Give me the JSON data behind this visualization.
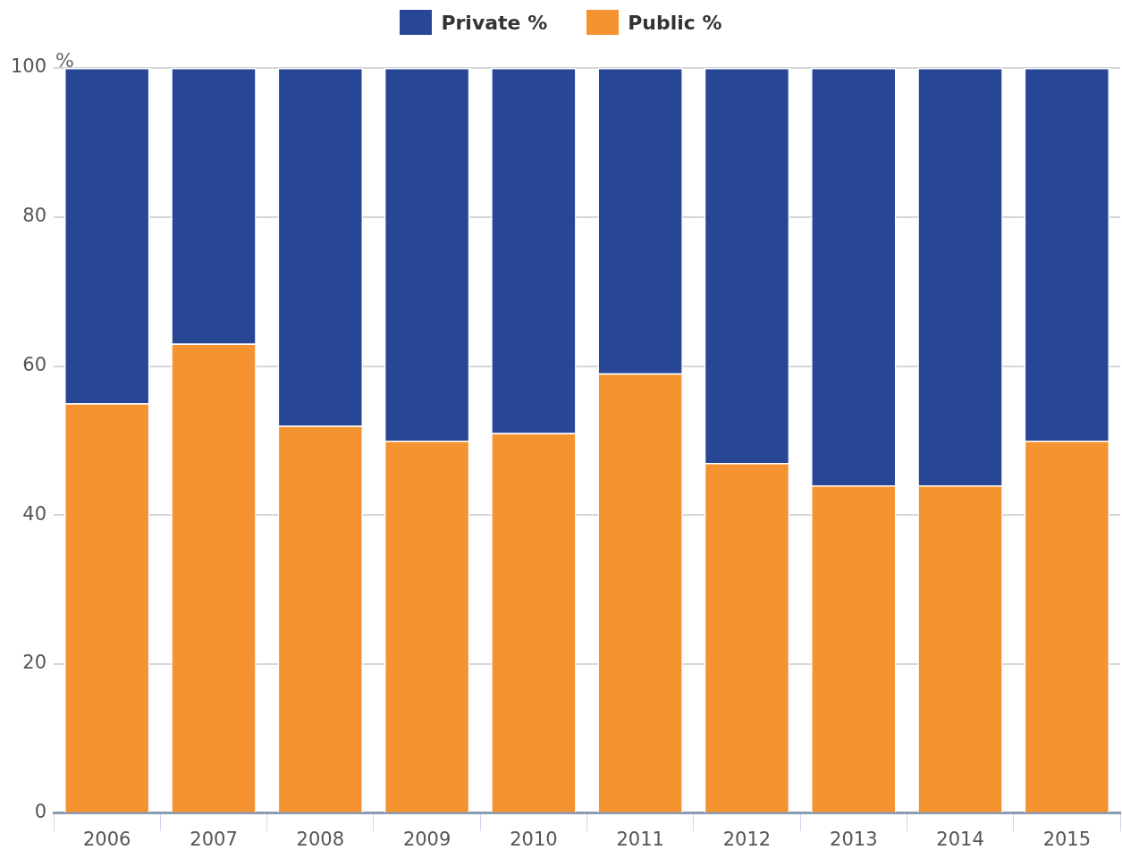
{
  "chart_data": {
    "type": "bar",
    "stacked": true,
    "ylabel": "%",
    "categories": [
      "2006",
      "2007",
      "2008",
      "2009",
      "2010",
      "2011",
      "2012",
      "2013",
      "2014",
      "2015"
    ],
    "series": [
      {
        "name": "Public %",
        "color": "#f59331",
        "values": [
          55,
          63,
          52,
          50,
          51,
          59,
          47,
          44,
          44,
          50
        ]
      },
      {
        "name": "Private %",
        "color": "#274796",
        "values": [
          45,
          37,
          48,
          50,
          49,
          41,
          53,
          56,
          56,
          50
        ]
      }
    ],
    "ylim": [
      0,
      100
    ],
    "yticks": [
      0,
      20,
      40,
      60,
      80,
      100
    ],
    "grid": "y",
    "legend": "top"
  }
}
